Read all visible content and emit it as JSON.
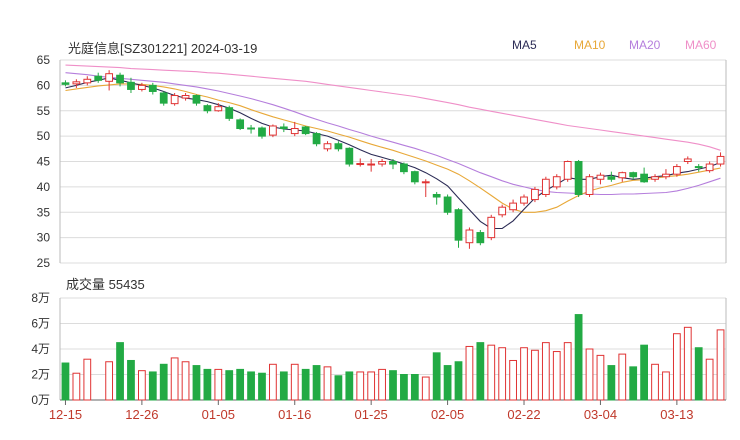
{
  "title": "光庭信息[SZ301221] 2024-03-19",
  "volume_label": "成交量 55435",
  "colors": {
    "up": "#e03333",
    "down": "#22aa44",
    "ma5": "#2b2b55",
    "ma10": "#e8a838",
    "ma20": "#b57edc",
    "ma60": "#ef8fc8"
  },
  "chart_data": [
    {
      "type": "candlestick",
      "title": "光庭信息[SZ301221] 2024-03-19",
      "y_ticks": [
        "65",
        "60",
        "55",
        "50",
        "45",
        "40",
        "35",
        "30",
        "25"
      ],
      "ylim": [
        25,
        65
      ],
      "x_ticks": [
        {
          "label": "12-15",
          "index": 0
        },
        {
          "label": "12-26",
          "index": 7
        },
        {
          "label": "01-05",
          "index": 14
        },
        {
          "label": "01-16",
          "index": 21
        },
        {
          "label": "01-25",
          "index": 28
        },
        {
          "label": "02-05",
          "index": 35
        },
        {
          "label": "02-22",
          "index": 42
        },
        {
          "label": "03-04",
          "index": 49
        },
        {
          "label": "03-13",
          "index": 56
        }
      ],
      "legend": [
        "MA5",
        "MA10",
        "MA20",
        "MA60"
      ],
      "ohlc": [
        [
          60.5,
          60.2,
          61.0,
          59.8
        ],
        [
          60.3,
          60.7,
          61.2,
          59.5
        ],
        [
          60.5,
          61.2,
          61.8,
          60.0
        ],
        [
          61.8,
          61.0,
          62.5,
          60.5
        ],
        [
          60.8,
          62.3,
          63.0,
          59.0
        ],
        [
          62.0,
          60.5,
          62.5,
          59.8
        ],
        [
          60.6,
          59.2,
          61.5,
          58.5
        ],
        [
          59.2,
          60.0,
          60.5,
          58.8
        ],
        [
          60.0,
          58.8,
          60.5,
          58.2
        ],
        [
          58.5,
          56.5,
          58.8,
          56.0
        ],
        [
          56.4,
          58.0,
          58.5,
          56.0
        ],
        [
          57.5,
          58.0,
          58.5,
          57.0
        ],
        [
          58.0,
          56.5,
          58.2,
          56.0
        ],
        [
          56.0,
          55.0,
          56.3,
          54.5
        ],
        [
          55.0,
          55.8,
          56.5,
          54.8
        ],
        [
          55.6,
          53.5,
          56.0,
          53.0
        ],
        [
          53.2,
          51.5,
          53.5,
          51.2
        ],
        [
          51.6,
          51.5,
          52.2,
          50.5
        ],
        [
          51.6,
          50.0,
          51.9,
          49.5
        ],
        [
          50.2,
          52.0,
          52.3,
          49.8
        ],
        [
          51.8,
          51.5,
          52.5,
          50.8
        ],
        [
          50.5,
          51.5,
          52.8,
          50.0
        ],
        [
          51.8,
          50.5,
          52.0,
          50.2
        ],
        [
          50.5,
          48.5,
          50.8,
          48.0
        ],
        [
          47.5,
          48.5,
          49.0,
          47.0
        ],
        [
          48.5,
          47.5,
          49.0,
          47.0
        ],
        [
          47.6,
          44.5,
          47.8,
          44.0
        ],
        [
          44.6,
          44.6,
          45.6,
          44.0
        ],
        [
          44.5,
          44.5,
          45.5,
          43.0
        ],
        [
          44.5,
          45.0,
          45.5,
          44.0
        ],
        [
          45.0,
          44.5,
          45.5,
          43.5
        ],
        [
          44.5,
          43.0,
          44.8,
          42.5
        ],
        [
          43.0,
          41.0,
          43.2,
          40.5
        ],
        [
          41.0,
          41.0,
          41.5,
          38.0
        ],
        [
          38.5,
          38.0,
          39.0,
          36.5
        ],
        [
          38.0,
          35.0,
          38.5,
          34.5
        ],
        [
          35.5,
          29.5,
          35.8,
          28.0
        ],
        [
          29.0,
          31.5,
          32.0,
          27.8
        ],
        [
          31.0,
          29.0,
          31.5,
          28.5
        ],
        [
          30.0,
          34.0,
          34.5,
          29.5
        ],
        [
          34.5,
          36.0,
          36.5,
          34.0
        ],
        [
          35.5,
          36.8,
          37.5,
          35.0
        ],
        [
          36.8,
          38.0,
          38.5,
          36.3
        ],
        [
          37.5,
          39.5,
          40.0,
          37.0
        ],
        [
          38.5,
          41.5,
          42.0,
          38.0
        ],
        [
          40.0,
          42.0,
          42.5,
          39.5
        ],
        [
          41.5,
          45.0,
          45.2,
          41.0
        ],
        [
          45.0,
          38.5,
          45.3,
          38.0
        ],
        [
          38.5,
          42.0,
          42.5,
          38.0
        ],
        [
          41.5,
          42.3,
          42.8,
          40.5
        ],
        [
          42.0,
          41.5,
          43.0,
          41.0
        ],
        [
          41.8,
          42.8,
          43.0,
          41.0
        ],
        [
          42.8,
          42.0,
          43.0,
          41.5
        ],
        [
          42.5,
          41.0,
          43.8,
          40.8
        ],
        [
          41.5,
          42.0,
          42.5,
          41.0
        ],
        [
          42.0,
          42.5,
          43.5,
          41.5
        ],
        [
          42.5,
          44.0,
          44.5,
          42.0
        ],
        [
          45.0,
          45.5,
          46.0,
          44.5
        ],
        [
          44.0,
          43.8,
          44.5,
          43.0
        ],
        [
          43.2,
          44.5,
          45.0,
          42.8
        ],
        [
          44.5,
          46.0,
          46.8,
          44.0
        ]
      ],
      "ma5": [
        59.5,
        60.0,
        60.6,
        61.0,
        61.5,
        61.0,
        60.5,
        60.0,
        59.5,
        58.8,
        58.0,
        57.5,
        57.2,
        56.8,
        56.2,
        55.5,
        54.6,
        53.5,
        52.5,
        51.8,
        51.4,
        51.2,
        51.0,
        50.5,
        50.0,
        49.2,
        48.3,
        47.3,
        46.4,
        45.8,
        45.2,
        44.5,
        43.8,
        42.8,
        41.6,
        40.2,
        37.8,
        35.5,
        33.2,
        31.8,
        31.8,
        33.3,
        35.6,
        37.8,
        39.3,
        40.5,
        41.8,
        41.5,
        41.5,
        42.0,
        42.3,
        41.8,
        41.5,
        41.7,
        42.0,
        42.2,
        42.7,
        43.0,
        43.5,
        44.0,
        44.8
      ],
      "ma10": [
        59.0,
        59.3,
        59.6,
        59.9,
        60.1,
        60.3,
        60.3,
        60.2,
        60.0,
        59.7,
        59.3,
        58.8,
        58.2,
        57.7,
        57.1,
        56.6,
        56.0,
        55.2,
        54.5,
        53.8,
        53.2,
        52.6,
        52.0,
        51.5,
        51.0,
        50.4,
        49.8,
        49.1,
        48.4,
        47.8,
        47.2,
        46.5,
        45.8,
        45.1,
        44.3,
        43.5,
        42.5,
        41.2,
        39.8,
        38.3,
        36.8,
        35.6,
        35.0,
        35.0,
        35.3,
        36.0,
        37.2,
        38.3,
        39.2,
        39.8,
        40.3,
        40.9,
        41.3,
        41.4,
        41.7,
        42.0,
        42.2,
        42.5,
        42.9,
        43.3,
        43.7
      ],
      "ma20": [
        62.5,
        62.3,
        62.1,
        61.8,
        61.6,
        61.4,
        61.2,
        61.0,
        60.8,
        60.6,
        60.3,
        60.0,
        59.7,
        59.3,
        58.9,
        58.4,
        57.9,
        57.4,
        56.8,
        56.2,
        55.5,
        54.8,
        54.0,
        53.3,
        52.6,
        52.0,
        51.3,
        50.7,
        50.0,
        49.4,
        48.8,
        48.2,
        47.6,
        46.9,
        46.2,
        45.4,
        44.6,
        43.7,
        42.8,
        42.0,
        41.2,
        40.5,
        40.0,
        39.5,
        39.1,
        38.9,
        38.8,
        38.7,
        38.6,
        38.5,
        38.5,
        38.6,
        38.6,
        38.7,
        38.8,
        38.9,
        39.2,
        39.7,
        40.3,
        41.0,
        41.7
      ],
      "ma60": [
        64.0,
        63.9,
        63.8,
        63.7,
        63.6,
        63.5,
        63.3,
        63.2,
        63.1,
        63.0,
        62.9,
        62.8,
        62.7,
        62.5,
        62.4,
        62.2,
        62.0,
        61.8,
        61.6,
        61.4,
        61.2,
        61.0,
        60.8,
        60.5,
        60.2,
        59.9,
        59.6,
        59.3,
        59.0,
        58.7,
        58.4,
        58.1,
        57.8,
        57.4,
        57.0,
        56.6,
        56.2,
        55.7,
        55.3,
        54.9,
        54.5,
        54.1,
        53.7,
        53.3,
        52.9,
        52.5,
        52.1,
        51.8,
        51.5,
        51.2,
        50.9,
        50.6,
        50.3,
        50.0,
        49.7,
        49.4,
        49.1,
        48.8,
        48.4,
        47.9,
        47.2
      ]
    },
    {
      "type": "bar",
      "title": "成交量 55435",
      "y_ticks": [
        "8万",
        "6万",
        "4万",
        "2万",
        "0万"
      ],
      "ylim": [
        0,
        80000
      ],
      "volume": [
        29000,
        21000,
        32000,
        0,
        30000,
        45000,
        31000,
        23000,
        22000,
        28000,
        33000,
        30000,
        27000,
        24000,
        24000,
        23000,
        24000,
        22000,
        21000,
        28000,
        22000,
        28000,
        24000,
        27000,
        26000,
        19000,
        22000,
        22000,
        22000,
        24000,
        23000,
        20000,
        20000,
        18000,
        37000,
        27000,
        30000,
        42000,
        45000,
        43000,
        41000,
        31000,
        41000,
        39000,
        45000,
        38000,
        45000,
        67000,
        40000,
        35000,
        27000,
        36000,
        26000,
        43000,
        28000,
        22000,
        52000,
        57000,
        41000,
        32000,
        55000
      ]
    }
  ]
}
